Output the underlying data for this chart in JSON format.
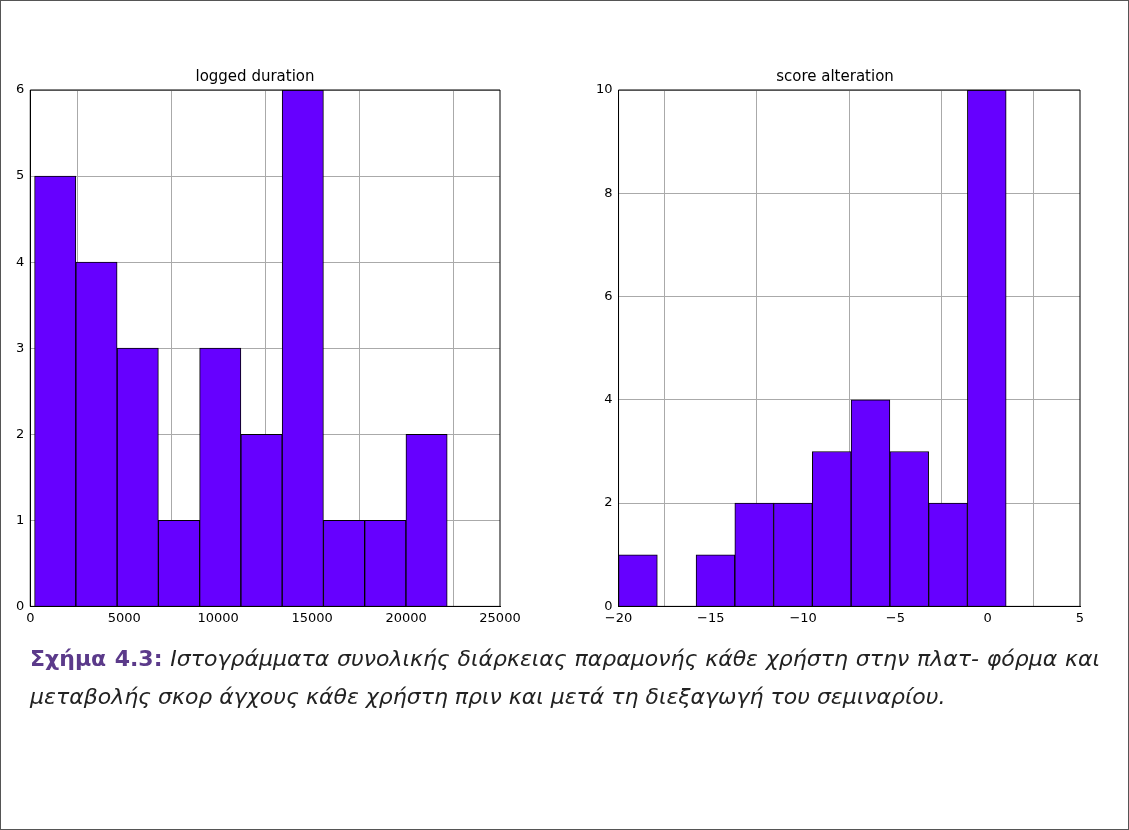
{
  "chart_data": [
    {
      "type": "histogram",
      "title": "logged duration",
      "bins": [
        230,
        2426,
        4622,
        6818,
        9014,
        11210,
        13406,
        15602,
        17798,
        19994,
        22190
      ],
      "values": [
        5,
        4,
        3,
        1,
        3,
        2,
        6,
        1,
        1,
        2
      ],
      "color": "#6600ff",
      "xlim": [
        0,
        25000
      ],
      "xticks": [
        0,
        5000,
        10000,
        15000,
        20000,
        25000
      ],
      "ylim": [
        0,
        6
      ],
      "yticks": [
        0,
        1,
        2,
        3,
        4,
        5,
        6
      ],
      "grid": true,
      "annotations": [
        "Σχήμα 4.3:",
        "Ιστογράμματα συνολικής διάρκειας παραμονής κάθε χρήστη στην πλατ- φόρμα και μεταβολής σκορ άγχους κάθε χρήστη πριν και μετά τη διεξαγωγή του σεμιναρίου."
      ]
    },
    {
      "type": "histogram",
      "title": "score alteration",
      "bins": [
        -20,
        -17.9,
        -15.8,
        -13.7,
        -11.6,
        -9.5,
        -7.4,
        -5.3,
        -3.2,
        -1.1,
        1
      ],
      "values": [
        1,
        0,
        1,
        2,
        2,
        3,
        4,
        3,
        2,
        10
      ],
      "color": "#6600ff",
      "xlim": [
        -20,
        5
      ],
      "xticks": [
        {
          "value": -20,
          "label": "−20"
        },
        {
          "value": -15,
          "label": "−15"
        },
        {
          "value": -10,
          "label": "−10"
        },
        {
          "value": -5,
          "label": "−5"
        },
        0,
        5
      ],
      "ylim": [
        0,
        10
      ],
      "yticks": [
        0,
        2,
        4,
        6,
        8,
        10
      ],
      "grid": true
    }
  ]
}
